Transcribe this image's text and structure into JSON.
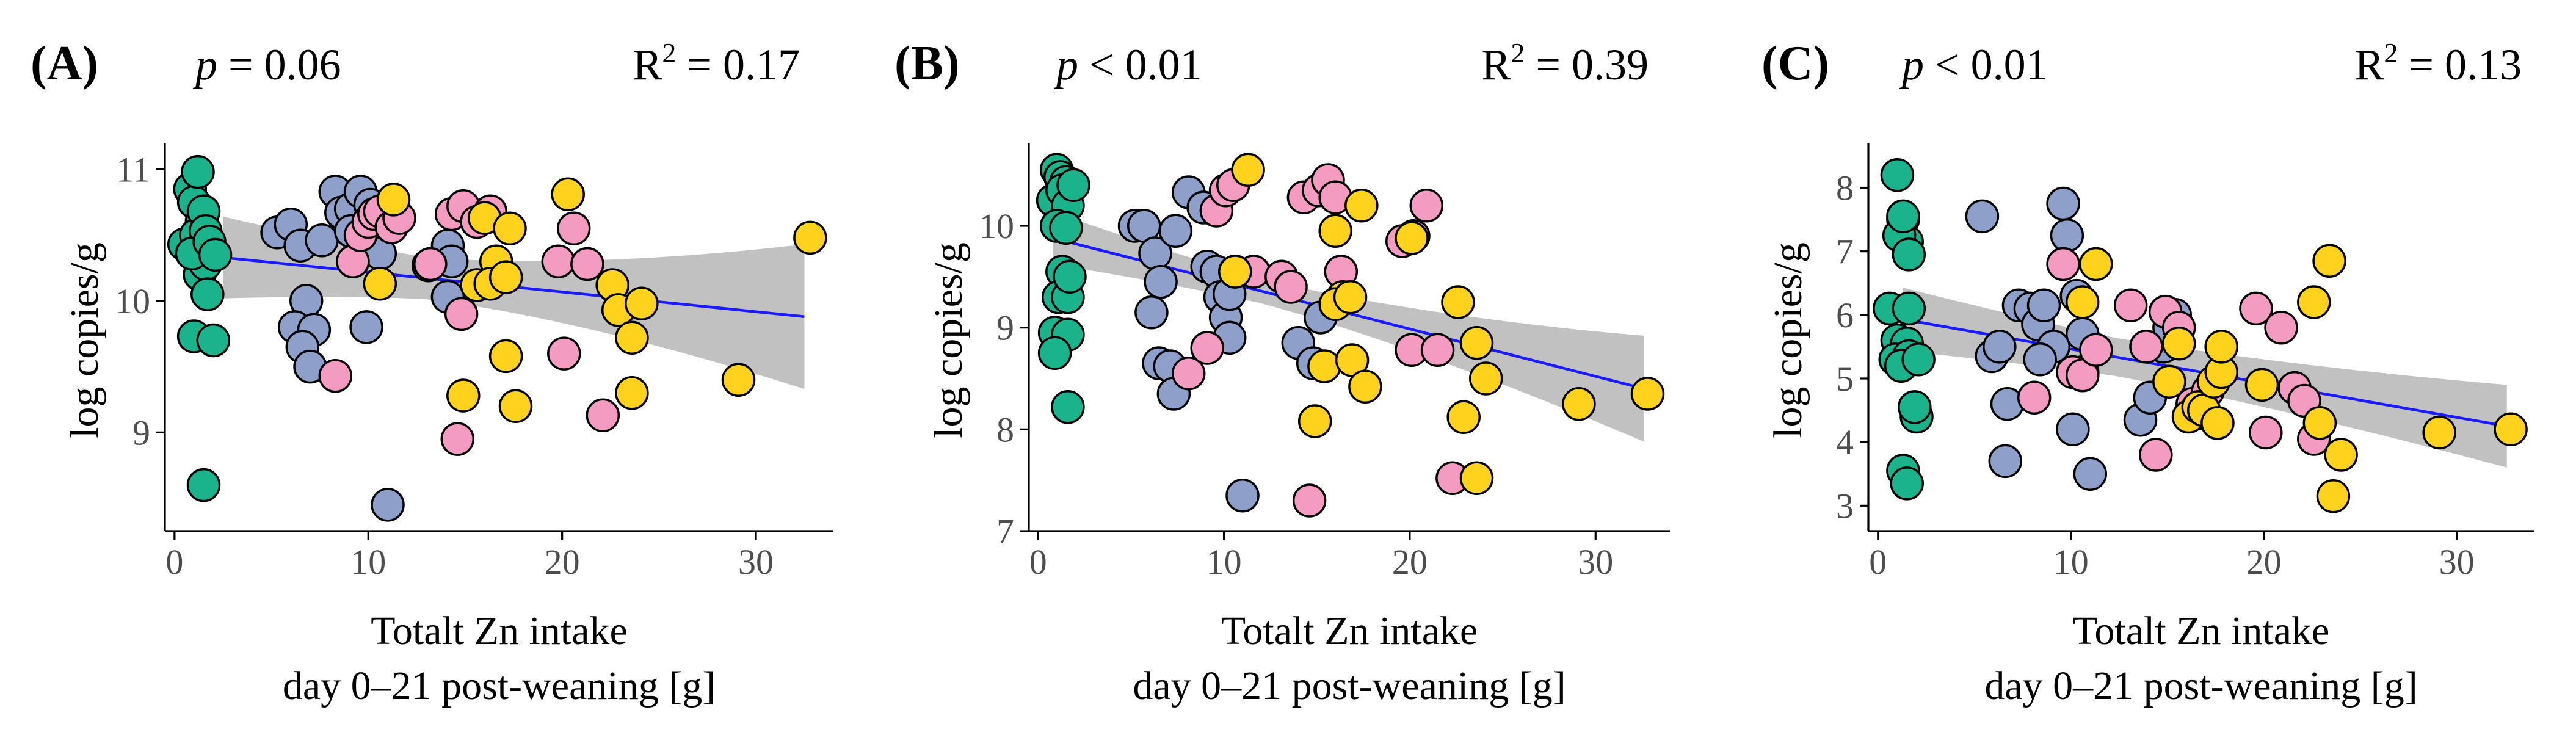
{
  "figure": {
    "x_axis_title_line1": "Totalt Zn intake",
    "x_axis_title_line2": "day 0–21 post-weaning [g]",
    "y_axis_title": "log copies/g"
  },
  "colors": {
    "green": "#1BB38C",
    "blue": "#8EA0C9",
    "pink": "#F39BC1",
    "yellow": "#FFD21E",
    "fit_line": "#1A1AFF",
    "ci_band": "#BEBEBE",
    "point_stroke": "#000000"
  },
  "chart_data": [
    {
      "type": "scatter",
      "panel_label": "(A)",
      "p_text": "p",
      "p_rest": " = 0.06",
      "r2_base": "R",
      "r2_sup": "2",
      "r2_rest": " = 0.17",
      "xlabel": "Totalt Zn intake day 0–21 post-weaning [g]",
      "ylabel": "log copies/g",
      "xlim": [
        -0.5,
        34
      ],
      "ylim": [
        8.25,
        11.15
      ],
      "xticks": [
        0,
        10,
        20,
        30
      ],
      "yticks": [
        9,
        10,
        11
      ],
      "fit": {
        "x0": 2.5,
        "y0": 10.33,
        "x1": 32.5,
        "y1": 9.88,
        "ci_start": 0.16,
        "ci_end": 0.55
      },
      "series": [
        {
          "name": "green",
          "color": "green",
          "points": [
            [
              0.5,
              10.43
            ],
            [
              0.8,
              10.85
            ],
            [
              1.0,
              10.75
            ],
            [
              1.2,
              10.98
            ],
            [
              1.4,
              10.6
            ],
            [
              1.1,
              10.5
            ],
            [
              1.5,
              10.68
            ],
            [
              1.6,
              10.53
            ],
            [
              1.3,
              10.2
            ],
            [
              1.6,
              10.28
            ],
            [
              0.9,
              10.36
            ],
            [
              1.7,
              10.05
            ],
            [
              1.0,
              9.73
            ],
            [
              2.0,
              9.7
            ],
            [
              1.5,
              8.6
            ],
            [
              1.8,
              10.45
            ],
            [
              2.1,
              10.35
            ]
          ]
        },
        {
          "name": "blue",
          "color": "blue",
          "points": [
            [
              5.3,
              10.52
            ],
            [
              6.0,
              10.58
            ],
            [
              6.5,
              10.42
            ],
            [
              6.8,
              10.0
            ],
            [
              6.2,
              9.8
            ],
            [
              7.2,
              9.78
            ],
            [
              6.6,
              9.65
            ],
            [
              7.0,
              9.5
            ],
            [
              7.6,
              10.46
            ],
            [
              8.3,
              10.83
            ],
            [
              8.6,
              10.67
            ],
            [
              9.1,
              10.7
            ],
            [
              9.6,
              10.83
            ],
            [
              10.1,
              10.73
            ],
            [
              9.1,
              10.53
            ],
            [
              10.6,
              10.36
            ],
            [
              9.9,
              9.8
            ],
            [
              13.1,
              10.27
            ],
            [
              14.1,
              10.42
            ],
            [
              14.3,
              10.3
            ],
            [
              14.1,
              10.03
            ],
            [
              11.0,
              8.45
            ]
          ]
        },
        {
          "name": "pink",
          "color": "pink",
          "points": [
            [
              8.3,
              9.43
            ],
            [
              9.2,
              10.3
            ],
            [
              9.6,
              10.5
            ],
            [
              10.0,
              10.6
            ],
            [
              10.3,
              10.66
            ],
            [
              10.6,
              10.68
            ],
            [
              11.2,
              10.56
            ],
            [
              11.6,
              10.63
            ],
            [
              13.2,
              10.28
            ],
            [
              14.3,
              10.66
            ],
            [
              14.9,
              10.72
            ],
            [
              15.6,
              10.6
            ],
            [
              14.8,
              9.9
            ],
            [
              14.6,
              8.95
            ],
            [
              16.3,
              10.68
            ],
            [
              19.8,
              10.3
            ],
            [
              20.6,
              10.55
            ],
            [
              21.3,
              10.28
            ],
            [
              20.1,
              9.6
            ],
            [
              22.1,
              9.13
            ]
          ]
        },
        {
          "name": "yellow",
          "color": "yellow",
          "points": [
            [
              11.3,
              10.77
            ],
            [
              10.6,
              10.13
            ],
            [
              14.9,
              9.28
            ],
            [
              15.6,
              10.12
            ],
            [
              16.0,
              10.63
            ],
            [
              16.6,
              10.3
            ],
            [
              16.3,
              10.13
            ],
            [
              17.1,
              10.18
            ],
            [
              17.3,
              10.55
            ],
            [
              17.1,
              9.58
            ],
            [
              17.6,
              9.2
            ],
            [
              20.3,
              10.81
            ],
            [
              22.6,
              10.12
            ],
            [
              22.9,
              9.93
            ],
            [
              23.6,
              9.72
            ],
            [
              23.6,
              9.3
            ],
            [
              24.1,
              9.98
            ],
            [
              29.1,
              9.4
            ],
            [
              32.8,
              10.48
            ]
          ]
        }
      ]
    },
    {
      "type": "scatter",
      "panel_label": "(B)",
      "p_text": "p",
      "p_rest": " < 0.01",
      "r2_base": "R",
      "r2_sup": "2",
      "r2_rest": " = 0.39",
      "xlabel": "Totalt Zn intake day 0–21 post-weaning [g]",
      "ylabel": "log copies/g",
      "xlim": [
        -0.5,
        34
      ],
      "ylim": [
        7.0,
        10.75
      ],
      "xticks": [
        0,
        10,
        20,
        30
      ],
      "yticks": [
        7,
        8,
        9,
        10
      ],
      "fit": {
        "x0": 0.8,
        "y0": 9.88,
        "x1": 32.6,
        "y1": 8.4,
        "ci_start": 0.12,
        "ci_end": 0.52
      },
      "series": [
        {
          "name": "green",
          "color": "green",
          "points": [
            [
              0.8,
              10.25
            ],
            [
              1.0,
              10.55
            ],
            [
              1.2,
              10.48
            ],
            [
              1.5,
              10.43
            ],
            [
              1.3,
              10.35
            ],
            [
              1.6,
              10.2
            ],
            [
              1.0,
              10.0
            ],
            [
              1.5,
              9.98
            ],
            [
              1.3,
              9.55
            ],
            [
              1.1,
              9.3
            ],
            [
              1.6,
              9.3
            ],
            [
              0.9,
              8.95
            ],
            [
              1.6,
              8.93
            ],
            [
              0.9,
              8.75
            ],
            [
              1.6,
              8.22
            ],
            [
              1.9,
              10.4
            ],
            [
              1.7,
              9.5
            ]
          ]
        },
        {
          "name": "blue",
          "color": "blue",
          "points": [
            [
              5.2,
              10.0
            ],
            [
              5.7,
              10.0
            ],
            [
              6.3,
              9.73
            ],
            [
              6.6,
              9.45
            ],
            [
              6.1,
              9.15
            ],
            [
              7.4,
              9.95
            ],
            [
              8.1,
              10.33
            ],
            [
              8.9,
              10.18
            ],
            [
              9.1,
              9.6
            ],
            [
              9.6,
              9.55
            ],
            [
              9.8,
              9.3
            ],
            [
              10.1,
              9.1
            ],
            [
              10.3,
              9.33
            ],
            [
              10.6,
              9.55
            ],
            [
              6.5,
              8.65
            ],
            [
              7.1,
              8.62
            ],
            [
              7.3,
              8.35
            ],
            [
              10.3,
              8.9
            ],
            [
              14.0,
              8.85
            ],
            [
              14.8,
              8.65
            ],
            [
              15.2,
              9.1
            ],
            [
              11.0,
              7.35
            ]
          ]
        },
        {
          "name": "pink",
          "color": "pink",
          "points": [
            [
              8.1,
              8.55
            ],
            [
              9.1,
              8.8
            ],
            [
              9.6,
              10.15
            ],
            [
              10.1,
              10.35
            ],
            [
              10.5,
              10.4
            ],
            [
              11.6,
              9.55
            ],
            [
              13.1,
              9.5
            ],
            [
              13.6,
              9.4
            ],
            [
              14.3,
              10.28
            ],
            [
              15.1,
              10.35
            ],
            [
              15.6,
              10.45
            ],
            [
              16.0,
              10.28
            ],
            [
              14.6,
              7.3
            ],
            [
              16.3,
              9.55
            ],
            [
              19.6,
              9.85
            ],
            [
              20.2,
              9.9
            ],
            [
              20.9,
              10.2
            ],
            [
              20.1,
              8.78
            ],
            [
              21.5,
              8.78
            ],
            [
              22.3,
              7.52
            ]
          ]
        },
        {
          "name": "yellow",
          "color": "yellow",
          "points": [
            [
              11.3,
              10.55
            ],
            [
              10.6,
              9.55
            ],
            [
              14.9,
              8.08
            ],
            [
              15.4,
              8.62
            ],
            [
              16.0,
              9.95
            ],
            [
              16.4,
              9.3
            ],
            [
              16.0,
              9.23
            ],
            [
              16.8,
              9.3
            ],
            [
              17.4,
              10.2
            ],
            [
              16.9,
              8.68
            ],
            [
              17.6,
              8.42
            ],
            [
              20.1,
              9.88
            ],
            [
              22.6,
              9.25
            ],
            [
              22.9,
              8.12
            ],
            [
              23.6,
              8.85
            ],
            [
              23.6,
              7.52
            ],
            [
              24.1,
              8.5
            ],
            [
              29.1,
              8.25
            ],
            [
              32.8,
              8.35
            ]
          ]
        }
      ]
    },
    {
      "type": "scatter",
      "panel_label": "(C)",
      "p_text": "p",
      "p_rest": " < 0.01",
      "r2_base": "R",
      "r2_sup": "2",
      "r2_rest": " = 0.13",
      "xlabel": "Totalt Zn intake day 0–21 post-weaning [g]",
      "ylabel": "log copies/g",
      "xlim": [
        -0.5,
        34
      ],
      "ylim": [
        2.6,
        8.6
      ],
      "xticks": [
        0,
        10,
        20,
        30
      ],
      "yticks": [
        3,
        4,
        5,
        6,
        7,
        8
      ],
      "fit": {
        "x0": 1.3,
        "y0": 5.93,
        "x1": 32.6,
        "y1": 4.25,
        "ci_start": 0.3,
        "ci_end": 0.65
      },
      "series": [
        {
          "name": "green",
          "color": "green",
          "points": [
            [
              0.6,
              6.1
            ],
            [
              1.0,
              8.2
            ],
            [
              1.3,
              7.5
            ],
            [
              1.5,
              7.15
            ],
            [
              1.1,
              7.25
            ],
            [
              1.6,
              6.95
            ],
            [
              1.3,
              7.55
            ],
            [
              1.6,
              6.1
            ],
            [
              1.0,
              5.6
            ],
            [
              1.5,
              5.55
            ],
            [
              0.9,
              5.3
            ],
            [
              1.6,
              5.35
            ],
            [
              1.2,
              5.2
            ],
            [
              2.0,
              4.4
            ],
            [
              1.3,
              3.55
            ],
            [
              1.5,
              3.35
            ],
            [
              1.9,
              4.55
            ],
            [
              2.1,
              5.3
            ]
          ]
        },
        {
          "name": "blue",
          "color": "blue",
          "points": [
            [
              5.4,
              7.55
            ],
            [
              5.9,
              5.35
            ],
            [
              6.3,
              5.5
            ],
            [
              6.7,
              4.6
            ],
            [
              6.6,
              3.7
            ],
            [
              7.3,
              6.15
            ],
            [
              7.9,
              6.1
            ],
            [
              8.3,
              5.85
            ],
            [
              8.6,
              6.15
            ],
            [
              9.1,
              5.5
            ],
            [
              9.6,
              7.75
            ],
            [
              9.8,
              7.25
            ],
            [
              10.3,
              6.3
            ],
            [
              10.6,
              5.7
            ],
            [
              10.6,
              5.1
            ],
            [
              10.1,
              4.2
            ],
            [
              8.4,
              5.3
            ],
            [
              11.0,
              3.5
            ],
            [
              13.6,
              4.35
            ],
            [
              14.1,
              4.7
            ],
            [
              14.8,
              5.5
            ],
            [
              15.1,
              5.8
            ],
            [
              15.4,
              6.0
            ]
          ]
        },
        {
          "name": "pink",
          "color": "pink",
          "points": [
            [
              8.1,
              4.7
            ],
            [
              9.6,
              6.8
            ],
            [
              10.1,
              5.1
            ],
            [
              10.6,
              5.05
            ],
            [
              11.3,
              5.45
            ],
            [
              13.1,
              6.15
            ],
            [
              13.9,
              5.5
            ],
            [
              14.4,
              3.8
            ],
            [
              14.9,
              6.05
            ],
            [
              15.6,
              5.8
            ],
            [
              16.3,
              4.6
            ],
            [
              16.6,
              4.45
            ],
            [
              17.1,
              4.8
            ],
            [
              17.6,
              4.3
            ],
            [
              19.6,
              6.1
            ],
            [
              20.1,
              4.15
            ],
            [
              20.9,
              5.8
            ],
            [
              21.6,
              4.85
            ],
            [
              22.1,
              4.65
            ],
            [
              22.6,
              4.05
            ]
          ]
        },
        {
          "name": "yellow",
          "color": "yellow",
          "points": [
            [
              10.6,
              6.2
            ],
            [
              11.3,
              6.8
            ],
            [
              15.1,
              4.95
            ],
            [
              15.6,
              5.55
            ],
            [
              16.1,
              4.4
            ],
            [
              16.6,
              4.55
            ],
            [
              16.9,
              4.5
            ],
            [
              17.4,
              4.95
            ],
            [
              17.8,
              5.1
            ],
            [
              17.8,
              5.5
            ],
            [
              17.6,
              4.3
            ],
            [
              19.9,
              4.9
            ],
            [
              22.6,
              6.2
            ],
            [
              22.9,
              4.3
            ],
            [
              23.4,
              6.85
            ],
            [
              23.6,
              3.15
            ],
            [
              24.0,
              3.8
            ],
            [
              29.1,
              4.15
            ],
            [
              32.8,
              4.2
            ]
          ]
        }
      ]
    }
  ]
}
